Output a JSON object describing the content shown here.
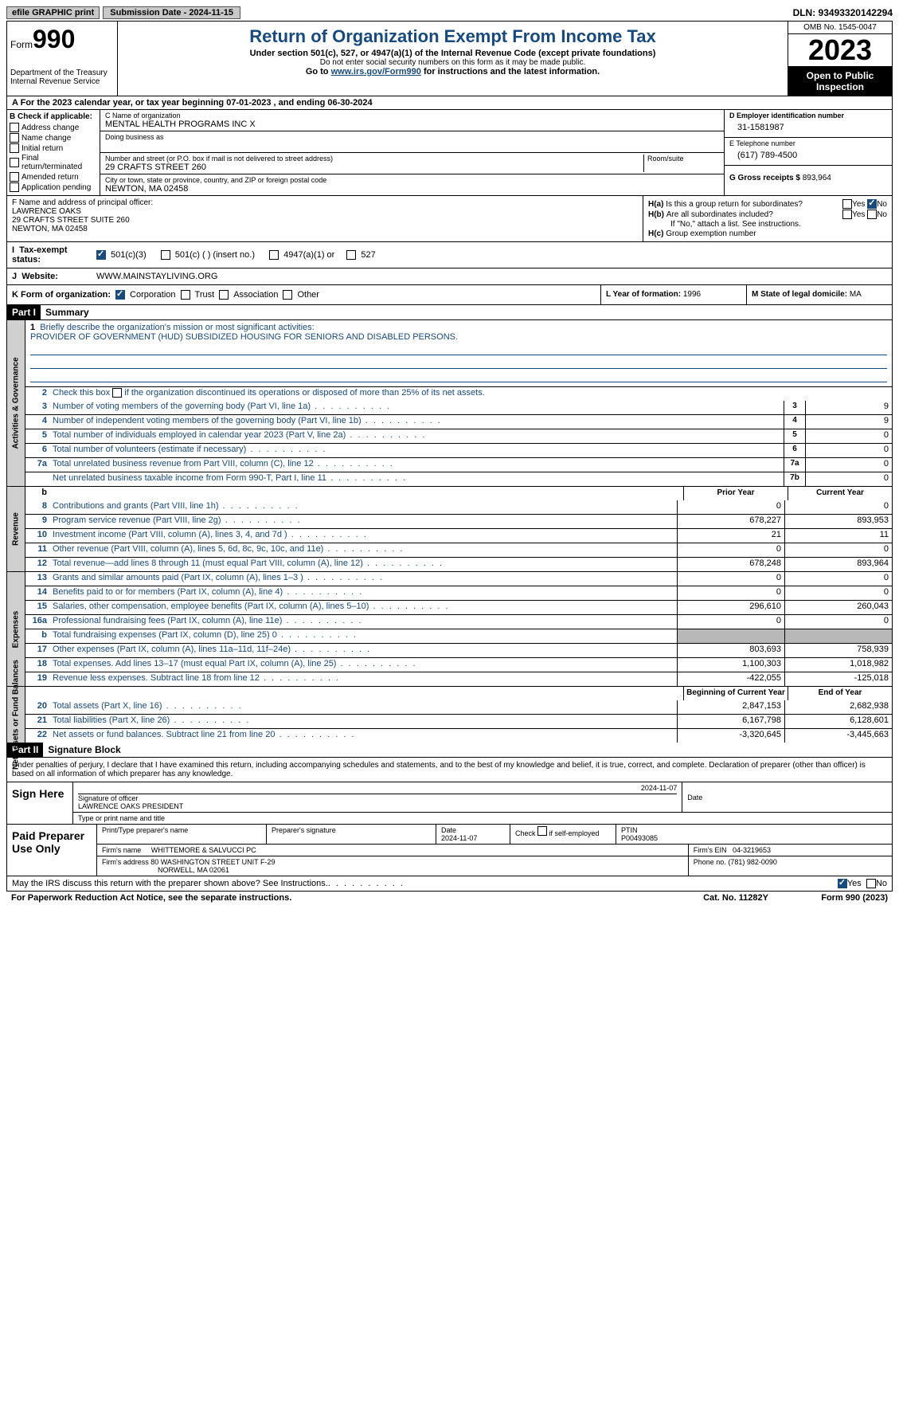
{
  "topbar": {
    "efile": "efile GRAPHIC print",
    "submission_date": "Submission Date - 2024-11-15",
    "dln": "DLN: 93493320142294"
  },
  "header": {
    "form_word": "Form",
    "form_num": "990",
    "title": "Return of Organization Exempt From Income Tax",
    "sub1": "Under section 501(c), 527, or 4947(a)(1) of the Internal Revenue Code (except private foundations)",
    "sub2": "Do not enter social security numbers on this form as it may be made public.",
    "sub3_pre": "Go to ",
    "sub3_link": "www.irs.gov/Form990",
    "sub3_post": " for instructions and the latest information.",
    "dept": "Department of the Treasury",
    "irs": "Internal Revenue Service",
    "omb": "OMB No. 1545-0047",
    "year": "2023",
    "open": "Open to Public Inspection"
  },
  "row_a": "For the 2023 calendar year, or tax year beginning 07-01-2023    , and ending 06-30-2024",
  "section_b": {
    "header": "B Check if applicable:",
    "items": [
      "Address change",
      "Name change",
      "Initial return",
      "Final return/terminated",
      "Amended return",
      "Application pending"
    ]
  },
  "section_c": {
    "name_lbl": "C Name of organization",
    "name": "MENTAL HEALTH PROGRAMS INC X",
    "dba_lbl": "Doing business as",
    "street_lbl": "Number and street (or P.O. box if mail is not delivered to street address)",
    "street": "29 CRAFTS STREET 260",
    "room_lbl": "Room/suite",
    "city_lbl": "City or town, state or province, country, and ZIP or foreign postal code",
    "city": "NEWTON, MA   02458"
  },
  "section_d": {
    "lbl": "D Employer identification number",
    "val": "31-1581987"
  },
  "section_e": {
    "lbl": "E Telephone number",
    "val": "(617) 789-4500"
  },
  "section_g": {
    "lbl": "G Gross receipts $",
    "val": "893,964"
  },
  "section_f": {
    "lbl": "F  Name and address of principal officer:",
    "name": "LAWRENCE OAKS",
    "addr1": "29 CRAFTS STREET SUITE 260",
    "addr2": "NEWTON, MA   02458"
  },
  "section_h": {
    "ha_lbl": "H(a)",
    "ha_q": "Is this a group return for subordinates?",
    "hb_lbl": "H(b)",
    "hb_q": "Are all subordinates included?",
    "hb_note": "If \"No,\" attach a list. See instructions.",
    "hc_lbl": "H(c)",
    "hc_q": "Group exemption number",
    "yes": "Yes",
    "no": "No"
  },
  "section_i": {
    "lbl": "Tax-exempt status:",
    "opt1": "501(c)(3)",
    "opt2": "501(c) (  ) (insert no.)",
    "opt3": "4947(a)(1) or",
    "opt4": "527"
  },
  "section_j": {
    "lbl": "Website:",
    "val": "WWW.MAINSTAYLIVING.ORG"
  },
  "section_k": {
    "lbl": "K Form of organization:",
    "opts": [
      "Corporation",
      "Trust",
      "Association",
      "Other"
    ]
  },
  "section_l": {
    "lbl": "L Year of formation:",
    "val": "1996"
  },
  "section_m": {
    "lbl": "M State of legal domicile:",
    "val": "MA"
  },
  "part1": {
    "num": "Part I",
    "title": "Summary",
    "line1_lbl": "Briefly describe the organization's mission or most significant activities:",
    "line1_val": "PROVIDER OF GOVERNMENT (HUD) SUBSIDIZED HOUSING FOR SENIORS AND DISABLED PERSONS.",
    "line2_lbl": "Check this box",
    "line2_post": "if the organization discontinued its operations or disposed of more than 25% of its net assets.",
    "gov_lines": [
      {
        "n": "3",
        "t": "Number of voting members of the governing body (Part VI, line 1a)",
        "box": "3",
        "v": "9"
      },
      {
        "n": "4",
        "t": "Number of independent voting members of the governing body (Part VI, line 1b)",
        "box": "4",
        "v": "9"
      },
      {
        "n": "5",
        "t": "Total number of individuals employed in calendar year 2023 (Part V, line 2a)",
        "box": "5",
        "v": "0"
      },
      {
        "n": "6",
        "t": "Total number of volunteers (estimate if necessary)",
        "box": "6",
        "v": "0"
      },
      {
        "n": "7a",
        "t": "Total unrelated business revenue from Part VIII, column (C), line 12",
        "box": "7a",
        "v": "0"
      },
      {
        "n": "",
        "t": "Net unrelated business taxable income from Form 990-T, Part I, line 11",
        "box": "7b",
        "v": "0"
      }
    ],
    "col_prior": "Prior Year",
    "col_current": "Current Year",
    "rev_lines": [
      {
        "n": "8",
        "t": "Contributions and grants (Part VIII, line 1h)",
        "p": "0",
        "c": "0"
      },
      {
        "n": "9",
        "t": "Program service revenue (Part VIII, line 2g)",
        "p": "678,227",
        "c": "893,953"
      },
      {
        "n": "10",
        "t": "Investment income (Part VIII, column (A), lines 3, 4, and 7d )",
        "p": "21",
        "c": "11"
      },
      {
        "n": "11",
        "t": "Other revenue (Part VIII, column (A), lines 5, 6d, 8c, 9c, 10c, and 11e)",
        "p": "0",
        "c": "0"
      },
      {
        "n": "12",
        "t": "Total revenue—add lines 8 through 11 (must equal Part VIII, column (A), line 12)",
        "p": "678,248",
        "c": "893,964"
      }
    ],
    "exp_lines": [
      {
        "n": "13",
        "t": "Grants and similar amounts paid (Part IX, column (A), lines 1–3 )",
        "p": "0",
        "c": "0"
      },
      {
        "n": "14",
        "t": "Benefits paid to or for members (Part IX, column (A), line 4)",
        "p": "0",
        "c": "0"
      },
      {
        "n": "15",
        "t": "Salaries, other compensation, employee benefits (Part IX, column (A), lines 5–10)",
        "p": "296,610",
        "c": "260,043"
      },
      {
        "n": "16a",
        "t": "Professional fundraising fees (Part IX, column (A), line 11e)",
        "p": "0",
        "c": "0"
      },
      {
        "n": "b",
        "t": "Total fundraising expenses (Part IX, column (D), line 25) 0",
        "p": "",
        "c": "",
        "gray": true
      },
      {
        "n": "17",
        "t": "Other expenses (Part IX, column (A), lines 11a–11d, 11f–24e)",
        "p": "803,693",
        "c": "758,939"
      },
      {
        "n": "18",
        "t": "Total expenses. Add lines 13–17 (must equal Part IX, column (A), line 25)",
        "p": "1,100,303",
        "c": "1,018,982"
      },
      {
        "n": "19",
        "t": "Revenue less expenses. Subtract line 18 from line 12",
        "p": "-422,055",
        "c": "-125,018"
      }
    ],
    "col_begin": "Beginning of Current Year",
    "col_end": "End of Year",
    "net_lines": [
      {
        "n": "20",
        "t": "Total assets (Part X, line 16)",
        "p": "2,847,153",
        "c": "2,682,938"
      },
      {
        "n": "21",
        "t": "Total liabilities (Part X, line 26)",
        "p": "6,167,798",
        "c": "6,128,601"
      },
      {
        "n": "22",
        "t": "Net assets or fund balances. Subtract line 21 from line 20",
        "p": "-3,320,645",
        "c": "-3,445,663"
      }
    ],
    "side_gov": "Activities & Governance",
    "side_rev": "Revenue",
    "side_exp": "Expenses",
    "side_net": "Net Assets or Fund Balances"
  },
  "part2": {
    "num": "Part II",
    "title": "Signature Block",
    "intro": "Under penalties of perjury, I declare that I have examined this return, including accompanying schedules and statements, and to the best of my knowledge and belief, it is true, correct, and complete. Declaration of preparer (other than officer) is based on all information of which preparer has any knowledge."
  },
  "sign": {
    "lbl": "Sign Here",
    "sig_lbl": "Signature of officer",
    "officer": "LAWRENCE OAKS  PRESIDENT",
    "type_lbl": "Type or print name and title",
    "date_lbl": "Date",
    "date": "2024-11-07"
  },
  "paid": {
    "lbl": "Paid Preparer Use Only",
    "print_lbl": "Print/Type preparer's name",
    "sig_lbl": "Preparer's signature",
    "date_lbl": "Date",
    "date": "2024-11-07",
    "check_lbl": "Check         if self-employed",
    "ptin_lbl": "PTIN",
    "ptin": "P00493085",
    "firm_name_lbl": "Firm's name",
    "firm_name": "WHITTEMORE & SALVUCCI PC",
    "firm_ein_lbl": "Firm's EIN",
    "firm_ein": "04-3219653",
    "firm_addr_lbl": "Firm's address",
    "firm_addr1": "80 WASHINGTON STREET UNIT F-29",
    "firm_addr2": "NORWELL, MA   02061",
    "phone_lbl": "Phone no.",
    "phone": "(781) 982-0090"
  },
  "discuss": {
    "q": "May the IRS discuss this return with the preparer shown above? See Instructions.",
    "yes": "Yes",
    "no": "No"
  },
  "footer": {
    "left": "For Paperwork Reduction Act Notice, see the separate instructions.",
    "mid": "Cat. No. 11282Y",
    "right_pre": "Form ",
    "right_num": "990",
    "right_post": " (2023)"
  }
}
